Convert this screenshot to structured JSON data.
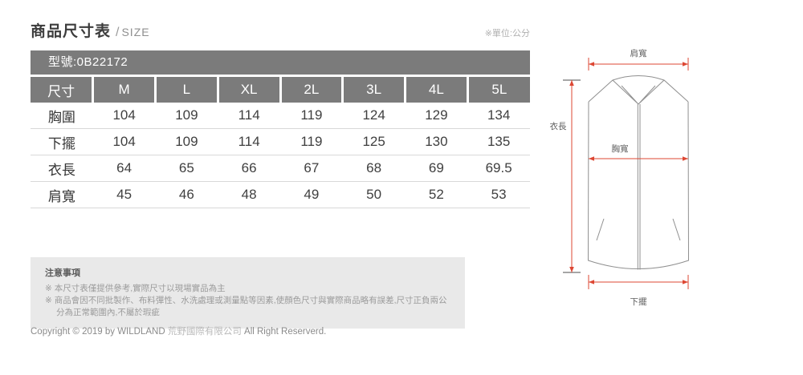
{
  "page": {
    "title_zh": "商品尺寸表",
    "title_sep": "/",
    "title_en": "SIZE",
    "unit_note": "※單位:公分"
  },
  "size_table": {
    "model_label": "型號:0B22172",
    "columns": [
      "尺寸",
      "M",
      "L",
      "XL",
      "2L",
      "3L",
      "4L",
      "5L"
    ],
    "rows": [
      {
        "label": "胸圍",
        "values": [
          "104",
          "109",
          "114",
          "119",
          "124",
          "129",
          "134"
        ]
      },
      {
        "label": "下擺",
        "values": [
          "104",
          "109",
          "114",
          "119",
          "125",
          "130",
          "135"
        ]
      },
      {
        "label": "衣長",
        "values": [
          "64",
          "65",
          "66",
          "67",
          "68",
          "69",
          "69.5"
        ]
      },
      {
        "label": "肩寬",
        "values": [
          "45",
          "46",
          "48",
          "49",
          "50",
          "52",
          "53"
        ]
      }
    ]
  },
  "notes": {
    "title": "注意事項",
    "items": [
      "※ 本尺寸表僅提供參考,實際尺寸以現場實品為主",
      "※ 商品會因不同批製作、布料彈性、水洗處理或測量點等因素,使顏色尺寸與實際商品略有誤差,尺寸正負兩公分為正常範圍內,不屬於瑕疵"
    ]
  },
  "footer": {
    "copyright_prefix": "Copyright © 2019 by WILDLAND ",
    "company_zh": "荒野國際有限公司",
    "copyright_suffix": " All Right Reserverd."
  },
  "diagram": {
    "labels": {
      "shoulder": "肩寬",
      "length": "衣長",
      "chest": "胸寬",
      "hem": "下擺"
    },
    "colors": {
      "dimension_line": "#dd4733",
      "garment_outline": "#8f8f8f",
      "table_header_gray": "#7b7b7b",
      "notes_background": "#e9e9e9"
    }
  }
}
